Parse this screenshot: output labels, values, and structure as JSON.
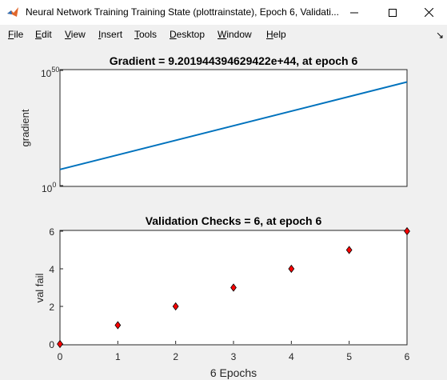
{
  "window": {
    "title": "Neural Network Training Training State (plottrainstate), Epoch 6, Validati..."
  },
  "menu": [
    {
      "accel": "F",
      "rest": "ile"
    },
    {
      "accel": "E",
      "rest": "dit"
    },
    {
      "accel": "V",
      "rest": "iew"
    },
    {
      "accel": "I",
      "rest": "nsert"
    },
    {
      "accel": "T",
      "rest": "ools"
    },
    {
      "accel": "D",
      "rest": "esktop"
    },
    {
      "accel": "W",
      "rest": "indow"
    },
    {
      "accel": "H",
      "rest": "elp"
    }
  ],
  "chart_data": [
    {
      "type": "line",
      "title": "Gradient = 9.201944394629422e+44, at epoch 6",
      "xlabel": "",
      "ylabel": "gradient",
      "yscale": "log",
      "ylim": [
        1,
        1e+50
      ],
      "xlim": [
        0,
        6
      ],
      "ytick_labels": [
        {
          "base": "10",
          "exp": "0"
        },
        {
          "base": "10",
          "exp": "50"
        }
      ],
      "x": [
        0,
        6
      ],
      "y": [
        10000000.0,
        9.201944394629422e+44
      ],
      "color": "#0072bd",
      "grid": false
    },
    {
      "type": "scatter",
      "title": "Validation Checks = 6, at epoch 6",
      "xlabel": "6 Epochs",
      "ylabel": "val fail",
      "xlim": [
        0,
        6
      ],
      "ylim": [
        0,
        6
      ],
      "xticks": [
        "0",
        "1",
        "2",
        "3",
        "4",
        "5",
        "6"
      ],
      "yticks": [
        "0",
        "2",
        "4",
        "6"
      ],
      "x": [
        0,
        1,
        2,
        3,
        4,
        5,
        6
      ],
      "y": [
        0,
        1,
        2,
        3,
        4,
        5,
        6
      ],
      "marker": "diamond",
      "marker_color": "#ff0000",
      "grid": false
    }
  ]
}
